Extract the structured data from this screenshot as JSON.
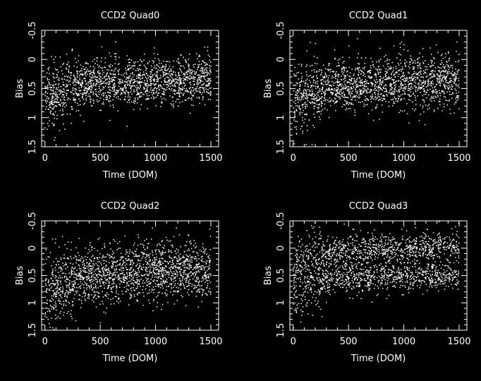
{
  "colors": {
    "background": "#000000",
    "foreground": "#ffffff",
    "points": "#ffffff"
  },
  "chart_data": [
    {
      "type": "scatter",
      "title": "CCD2 Quad0",
      "xlabel": "Time (DOM)",
      "ylabel": "Bias",
      "xlim": [
        -30,
        1570
      ],
      "ylim": [
        1.5,
        -0.5
      ],
      "y_inverted": true,
      "xticks": [
        "0",
        "500",
        "1000",
        "1500"
      ],
      "yticks": [
        "1.5",
        "1",
        "0.5",
        "0",
        "-0.5"
      ],
      "grid": false,
      "seed": 11,
      "series": [
        {
          "x_range": [
            0,
            1500
          ],
          "n_points": 1700,
          "baseline_trend": [
            [
              0,
              0.65
            ],
            [
              150,
              0.55
            ],
            [
              300,
              0.45
            ],
            [
              700,
              0.4
            ],
            [
              1000,
              0.38
            ],
            [
              1500,
              0.35
            ]
          ],
          "spread": 0.2,
          "outliers": [
            [
              20,
              1.2
            ],
            [
              25,
              1.1
            ],
            [
              180,
              1.2
            ],
            [
              640,
              -0.3
            ],
            [
              990,
              -0.2
            ],
            [
              1470,
              -0.15
            ],
            [
              60,
              -0.05
            ]
          ]
        }
      ]
    },
    {
      "type": "scatter",
      "title": "CCD2 Quad1",
      "xlabel": "Time (DOM)",
      "ylabel": "Bias",
      "xlim": [
        -30,
        1570
      ],
      "ylim": [
        1.5,
        -0.5
      ],
      "y_inverted": true,
      "xticks": [
        "0",
        "500",
        "1000",
        "1500"
      ],
      "yticks": [
        "1.5",
        "1",
        "0.5",
        "0",
        "-0.5"
      ],
      "grid": false,
      "seed": 23,
      "series": [
        {
          "x_range": [
            0,
            1500
          ],
          "n_points": 1700,
          "baseline_trend": [
            [
              0,
              0.75
            ],
            [
              150,
              0.62
            ],
            [
              300,
              0.5
            ],
            [
              700,
              0.42
            ],
            [
              1000,
              0.38
            ],
            [
              1500,
              0.35
            ]
          ],
          "spread": 0.22,
          "outliers": [
            [
              10,
              1.45
            ],
            [
              30,
              1.2
            ],
            [
              980,
              -0.3
            ],
            [
              1000,
              -0.25
            ],
            [
              1480,
              -0.3
            ],
            [
              1140,
              1.05
            ],
            [
              80,
              1.15
            ]
          ]
        }
      ]
    },
    {
      "type": "scatter",
      "title": "CCD2 Quad2",
      "xlabel": "Time (DOM)",
      "ylabel": "Bias",
      "xlim": [
        -30,
        1570
      ],
      "ylim": [
        1.5,
        -0.5
      ],
      "y_inverted": true,
      "xticks": [
        "0",
        "500",
        "1000",
        "1500"
      ],
      "yticks": [
        "1.5",
        "1",
        "0.5",
        "0",
        "-0.5"
      ],
      "grid": false,
      "seed": 37,
      "series": [
        {
          "x_range": [
            0,
            1500
          ],
          "n_points": 1800,
          "baseline_trend": [
            [
              0,
              0.8
            ],
            [
              150,
              0.65
            ],
            [
              300,
              0.52
            ],
            [
              700,
              0.45
            ],
            [
              1000,
              0.4
            ],
            [
              1500,
              0.4
            ]
          ],
          "spread": 0.26,
          "outliers": [
            [
              30,
              1.3
            ],
            [
              60,
              1.28
            ],
            [
              120,
              1.25
            ],
            [
              1490,
              -0.35
            ],
            [
              340,
              0.3
            ],
            [
              410,
              -0.1
            ]
          ]
        }
      ]
    },
    {
      "type": "scatter",
      "title": "CCD2 Quad3",
      "xlabel": "Time (DOM)",
      "ylabel": "Bias",
      "xlim": [
        -30,
        1570
      ],
      "ylim": [
        1.5,
        -0.5
      ],
      "y_inverted": true,
      "xticks": [
        "0",
        "500",
        "1000",
        "1500"
      ],
      "yticks": [
        "1.5",
        "1",
        "0.5",
        "0",
        "-0.5"
      ],
      "grid": false,
      "seed": 53,
      "series": [
        {
          "x_range": [
            0,
            1500
          ],
          "n_points": 1900,
          "bimodal": true,
          "upper_trend": [
            [
              0,
              0.4
            ],
            [
              150,
              0.15
            ],
            [
              400,
              0.05
            ],
            [
              1000,
              0.0
            ],
            [
              1500,
              -0.05
            ]
          ],
          "lower_trend": [
            [
              0,
              0.85
            ],
            [
              150,
              0.7
            ],
            [
              400,
              0.55
            ],
            [
              1000,
              0.5
            ],
            [
              1500,
              0.5
            ]
          ],
          "spread": 0.14,
          "outliers": [
            [
              40,
              1.1
            ],
            [
              260,
              1.25
            ],
            [
              540,
              -0.35
            ],
            [
              1490,
              0.75
            ]
          ]
        }
      ]
    }
  ]
}
